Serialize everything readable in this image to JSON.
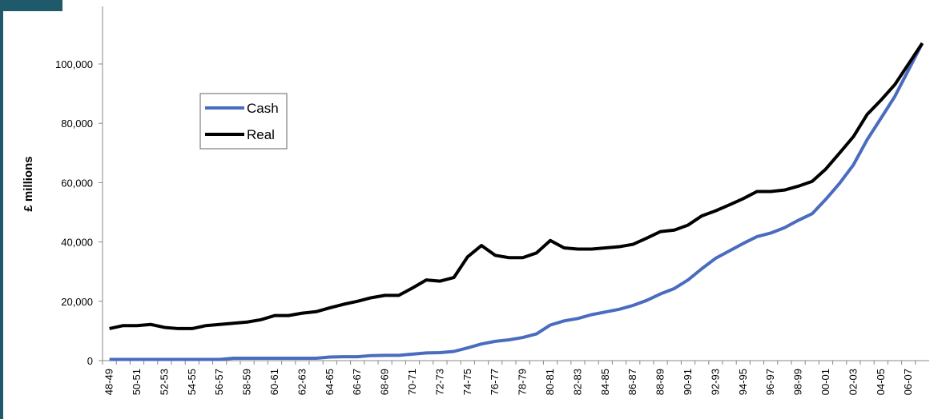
{
  "chart_data": {
    "type": "line",
    "y_label": "£ millions",
    "categories": [
      "48-49",
      null,
      "50-51",
      null,
      "52-53",
      null,
      "54-55",
      null,
      "56-57",
      null,
      "58-59",
      null,
      "60-61",
      null,
      "62-63",
      null,
      "64-65",
      null,
      "66-67",
      null,
      "68-69",
      null,
      "70-71",
      null,
      "72-73",
      null,
      "74-75",
      null,
      "76-77",
      null,
      "78-79",
      null,
      "80-81",
      null,
      "82-83",
      null,
      "84-85",
      null,
      "86-87",
      null,
      "88-89",
      null,
      "90-91",
      null,
      "92-93",
      null,
      "94-95",
      null,
      "96-97",
      null,
      "98-99",
      null,
      "00-01",
      null,
      "02-03",
      null,
      "04-05",
      null,
      "06-07",
      null
    ],
    "series": [
      {
        "name": "Cash",
        "color": "#4a6cbf",
        "values": [
          400,
          400,
          400,
          400,
          400,
          400,
          400,
          400,
          400,
          800,
          800,
          800,
          800,
          800,
          800,
          800,
          1200,
          1300,
          1300,
          1700,
          1800,
          1800,
          2200,
          2600,
          2700,
          3100,
          4300,
          5600,
          6500,
          7000,
          7800,
          9000,
          12000,
          13400,
          14200,
          15500,
          16400,
          17300,
          18600,
          20300,
          22500,
          24300,
          27200,
          31000,
          34500,
          37000,
          39500,
          41800,
          43000,
          44800,
          47300,
          49500,
          54400,
          59800,
          66000,
          74500,
          81700,
          89000,
          98000,
          107000
        ]
      },
      {
        "name": "Real",
        "color": "#000000",
        "values": [
          10800,
          11800,
          11800,
          12200,
          11200,
          10800,
          10800,
          11800,
          12200,
          12600,
          13000,
          13800,
          15200,
          15200,
          16000,
          16500,
          17800,
          19000,
          20000,
          21200,
          22000,
          22000,
          24500,
          27200,
          26800,
          28000,
          35000,
          38800,
          35500,
          34700,
          34700,
          36300,
          40500,
          38000,
          37600,
          37600,
          38000,
          38400,
          39200,
          41300,
          43500,
          44000,
          45700,
          48800,
          50500,
          52500,
          54600,
          57000,
          57000,
          57500,
          58800,
          60400,
          64600,
          70000,
          75500,
          83000,
          87800,
          93000,
          100000,
          107000
        ]
      }
    ],
    "ylim": [
      0,
      120000
    ],
    "yticks": [
      0,
      {
        "value": 20000,
        "label": "20,000"
      },
      {
        "value": 40000,
        "label": "40,000"
      },
      {
        "value": 60000,
        "label": "60,000"
      },
      {
        "value": 80000,
        "label": "80,000"
      },
      {
        "value": 100000,
        "label": "100,000"
      }
    ]
  }
}
